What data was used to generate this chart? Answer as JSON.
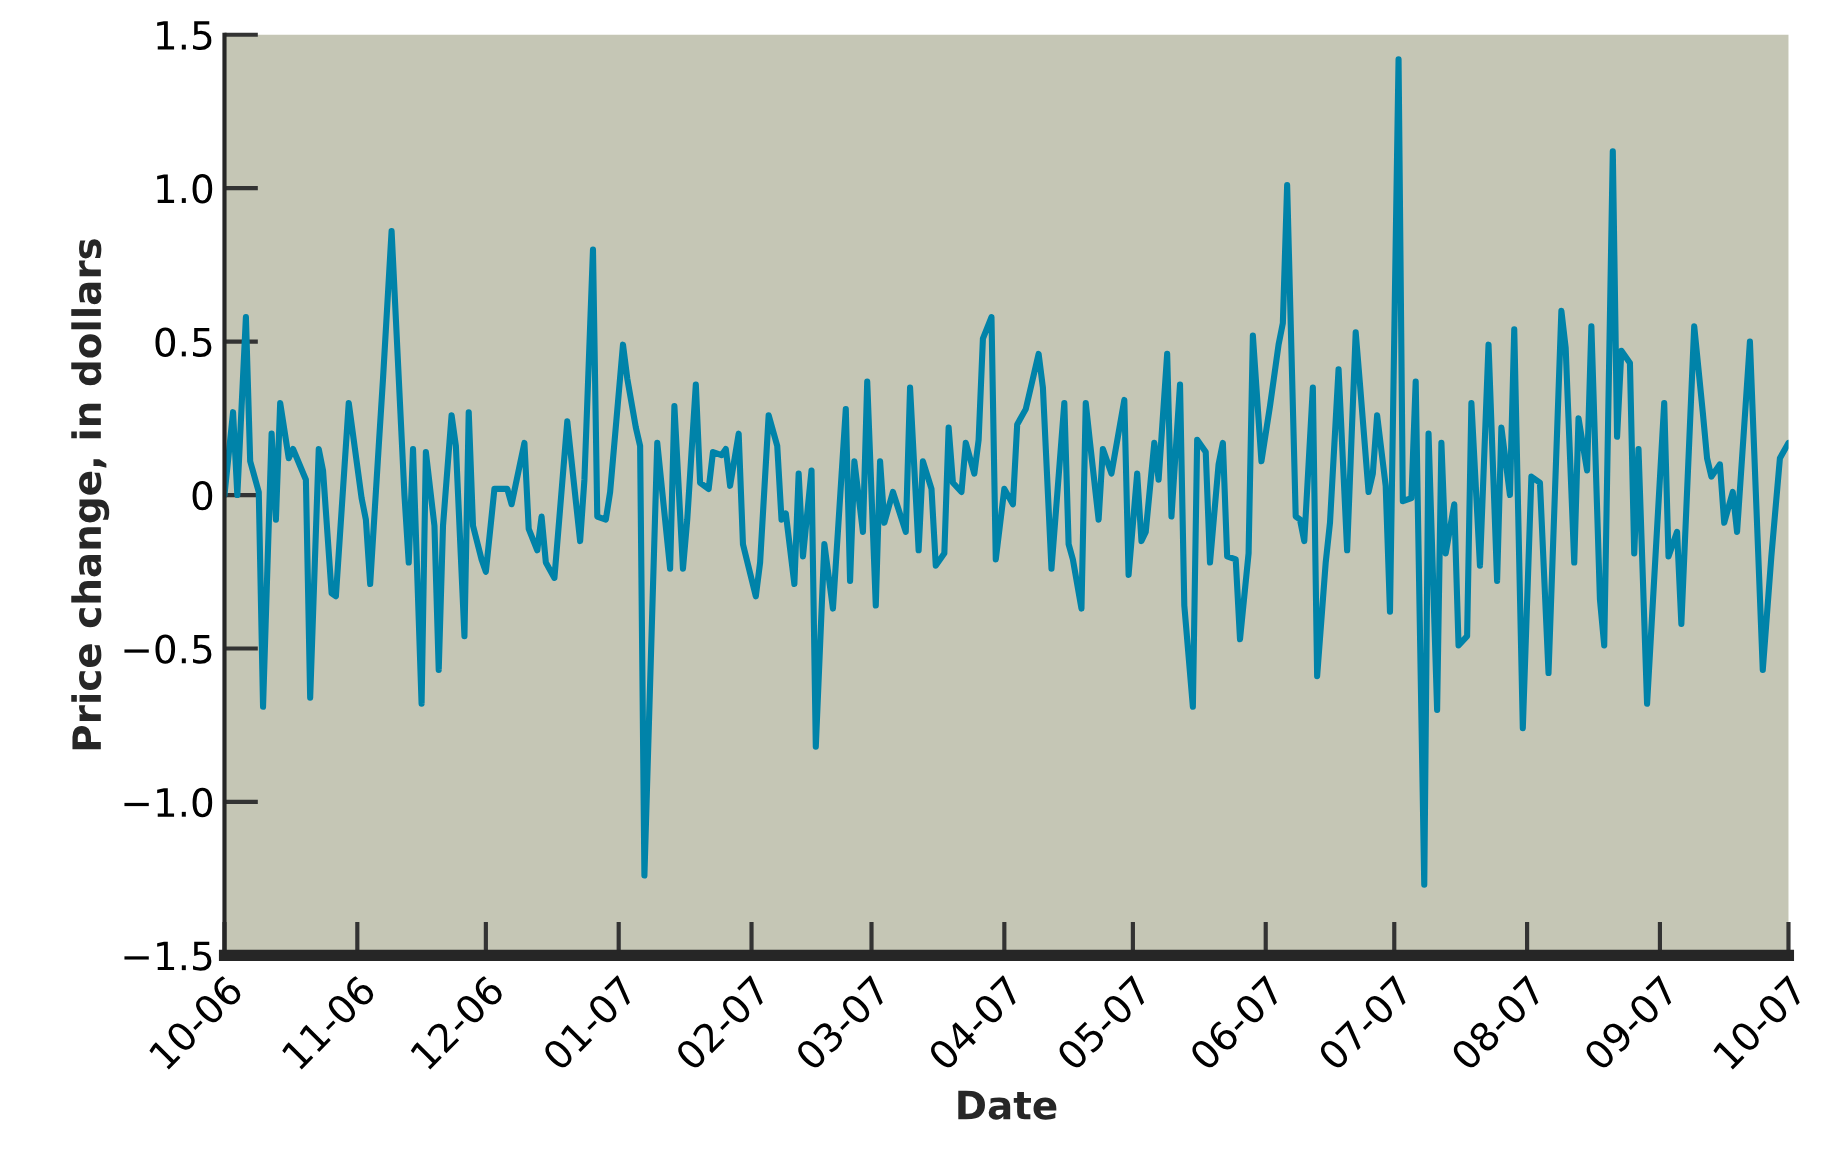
{
  "chart_data": {
    "type": "line",
    "xlabel": "Date",
    "ylabel": "Price change, in dollars",
    "xlim": [
      "2006-10",
      "2007-10"
    ],
    "ylim": [
      -1.5,
      1.5
    ],
    "xticks": [
      {
        "value": "2006-10",
        "label": "10-06"
      },
      {
        "value": "2006-11",
        "label": "11-06"
      },
      {
        "value": "2006-12",
        "label": "12-06"
      },
      {
        "value": "2007-01",
        "label": "01-07"
      },
      {
        "value": "2007-02",
        "label": "02-07"
      },
      {
        "value": "2007-03",
        "label": "03-07"
      },
      {
        "value": "2007-04",
        "label": "04-07"
      },
      {
        "value": "2007-05",
        "label": "05-07"
      },
      {
        "value": "2007-06",
        "label": "06-07"
      },
      {
        "value": "2007-07",
        "label": "07-07"
      },
      {
        "value": "2007-08",
        "label": "08-07"
      },
      {
        "value": "2007-09",
        "label": "09-07"
      },
      {
        "value": "2007-10",
        "label": "10-07"
      }
    ],
    "yticks": [
      {
        "value": -1.5,
        "label": "−1.5"
      },
      {
        "value": -1,
        "label": "−1.0"
      },
      {
        "value": -0.5,
        "label": "−0.5"
      },
      {
        "value": 0,
        "label": "0"
      },
      {
        "value": 0.5,
        "label": "0.5"
      },
      {
        "value": 1,
        "label": "1.0"
      },
      {
        "value": 1.5,
        "label": "1.5"
      }
    ],
    "grid": false,
    "legend": false,
    "marker": "none",
    "line_style": "solid",
    "series": [
      {
        "color": "#0083a9",
        "x": [
          "2006-10-01",
          "2006-10-03",
          "2006-10-04",
          "2006-10-06",
          "2006-10-07",
          "2006-10-09",
          "2006-10-10",
          "2006-10-12",
          "2006-10-13",
          "2006-10-14",
          "2006-10-16",
          "2006-10-17",
          "2006-10-20",
          "2006-10-21",
          "2006-10-23",
          "2006-10-24",
          "2006-10-26",
          "2006-10-27",
          "2006-10-30",
          "2006-11-02",
          "2006-11-03",
          "2006-11-04",
          "2006-11-06",
          "2006-11-07",
          "2006-11-09",
          "2006-11-12",
          "2006-11-13",
          "2006-11-14",
          "2006-11-16",
          "2006-11-17",
          "2006-11-19",
          "2006-11-20",
          "2006-11-21",
          "2006-11-23",
          "2006-11-24",
          "2006-11-26",
          "2006-11-27",
          "2006-11-28",
          "2006-11-30",
          "2006-12-01",
          "2006-12-03",
          "2006-12-06",
          "2006-12-07",
          "2006-12-10",
          "2006-12-11",
          "2006-12-13",
          "2006-12-14",
          "2006-12-15",
          "2006-12-17",
          "2006-12-20",
          "2006-12-23",
          "2006-12-24",
          "2006-12-26",
          "2006-12-27",
          "2006-12-29",
          "2006-12-30",
          "2007-01-02",
          "2007-01-03",
          "2007-01-05",
          "2007-01-06",
          "2007-01-07",
          "2007-01-10",
          "2007-01-13",
          "2007-01-14",
          "2007-01-16",
          "2007-01-17",
          "2007-01-19",
          "2007-01-20",
          "2007-01-22",
          "2007-01-23",
          "2007-01-25",
          "2007-01-26",
          "2007-01-27",
          "2007-01-29",
          "2007-01-30",
          "2007-02-02",
          "2007-02-03",
          "2007-02-05",
          "2007-02-07",
          "2007-02-08",
          "2007-02-09",
          "2007-02-11",
          "2007-02-12",
          "2007-02-13",
          "2007-02-15",
          "2007-02-16",
          "2007-02-18",
          "2007-02-20",
          "2007-02-23",
          "2007-02-24",
          "2007-02-25",
          "2007-02-27",
          "2007-02-28",
          "2007-03-02",
          "2007-03-03",
          "2007-03-04",
          "2007-03-06",
          "2007-03-09",
          "2007-03-10",
          "2007-03-12",
          "2007-03-13",
          "2007-03-15",
          "2007-03-16",
          "2007-03-18",
          "2007-03-19",
          "2007-03-20",
          "2007-03-22",
          "2007-03-23",
          "2007-03-25",
          "2007-03-26",
          "2007-03-27",
          "2007-03-29",
          "2007-03-30",
          "2007-04-01",
          "2007-04-03",
          "2007-04-04",
          "2007-04-06",
          "2007-04-09",
          "2007-04-10",
          "2007-04-12",
          "2007-04-15",
          "2007-04-16",
          "2007-04-17",
          "2007-04-19",
          "2007-04-20",
          "2007-04-21",
          "2007-04-23",
          "2007-04-24",
          "2007-04-26",
          "2007-04-29",
          "2007-04-30",
          "2007-05-02",
          "2007-05-03",
          "2007-05-04",
          "2007-05-06",
          "2007-05-07",
          "2007-05-09",
          "2007-05-10",
          "2007-05-12",
          "2007-05-13",
          "2007-05-15",
          "2007-05-16",
          "2007-05-18",
          "2007-05-19",
          "2007-05-21",
          "2007-05-22",
          "2007-05-23",
          "2007-05-25",
          "2007-05-26",
          "2007-05-28",
          "2007-05-29",
          "2007-05-31",
          "2007-06-02",
          "2007-06-04",
          "2007-06-05",
          "2007-06-06",
          "2007-06-08",
          "2007-06-09",
          "2007-06-10",
          "2007-06-12",
          "2007-06-13",
          "2007-06-15",
          "2007-06-16",
          "2007-06-18",
          "2007-06-20",
          "2007-06-22",
          "2007-06-23",
          "2007-06-25",
          "2007-06-26",
          "2007-06-27",
          "2007-06-29",
          "2007-06-30",
          "2007-07-02",
          "2007-07-03",
          "2007-07-05",
          "2007-07-06",
          "2007-07-08",
          "2007-07-09",
          "2007-07-11",
          "2007-07-12",
          "2007-07-13",
          "2007-07-15",
          "2007-07-16",
          "2007-07-18",
          "2007-07-19",
          "2007-07-21",
          "2007-07-23",
          "2007-07-25",
          "2007-07-26",
          "2007-07-28",
          "2007-07-29",
          "2007-07-31",
          "2007-08-02",
          "2007-08-04",
          "2007-08-06",
          "2007-08-09",
          "2007-08-10",
          "2007-08-12",
          "2007-08-13",
          "2007-08-15",
          "2007-08-16",
          "2007-08-18",
          "2007-08-19",
          "2007-08-21",
          "2007-08-22",
          "2007-08-23",
          "2007-08-25",
          "2007-08-26",
          "2007-08-27",
          "2007-08-29",
          "2007-09-02",
          "2007-09-03",
          "2007-09-05",
          "2007-09-06",
          "2007-09-09",
          "2007-09-11",
          "2007-09-12",
          "2007-09-13",
          "2007-09-15",
          "2007-09-16",
          "2007-09-18",
          "2007-09-19",
          "2007-09-22",
          "2007-09-25",
          "2007-09-27",
          "2007-09-29",
          "2007-10-01"
        ],
        "values": [
          0.0,
          0.27,
          0.0,
          0.58,
          0.11,
          0.01,
          -0.69,
          0.2,
          -0.08,
          0.3,
          0.12,
          0.15,
          0.05,
          -0.66,
          0.15,
          0.08,
          -0.32,
          -0.33,
          0.3,
          -0.01,
          -0.08,
          -0.29,
          0.16,
          0.38,
          0.86,
          0.0,
          -0.22,
          0.15,
          -0.68,
          0.14,
          -0.1,
          -0.57,
          -0.1,
          0.26,
          0.16,
          -0.46,
          0.27,
          -0.1,
          -0.21,
          -0.25,
          0.02,
          0.02,
          -0.03,
          0.17,
          -0.11,
          -0.18,
          -0.07,
          -0.22,
          -0.27,
          0.24,
          -0.15,
          0.05,
          0.8,
          -0.07,
          -0.08,
          0.01,
          0.49,
          0.38,
          0.22,
          0.16,
          -1.24,
          0.17,
          -0.24,
          0.29,
          -0.24,
          -0.08,
          0.36,
          0.04,
          0.02,
          0.14,
          0.13,
          0.15,
          0.03,
          0.2,
          -0.16,
          -0.33,
          -0.22,
          0.26,
          0.16,
          -0.08,
          -0.06,
          -0.29,
          0.07,
          -0.2,
          0.08,
          -0.82,
          -0.16,
          -0.37,
          0.28,
          -0.28,
          0.11,
          -0.12,
          0.37,
          -0.36,
          0.11,
          -0.09,
          0.01,
          -0.12,
          0.35,
          -0.18,
          0.11,
          0.02,
          -0.23,
          -0.19,
          0.22,
          0.04,
          0.01,
          0.17,
          0.07,
          0.18,
          0.51,
          0.58,
          -0.21,
          0.02,
          -0.03,
          0.23,
          0.28,
          0.46,
          0.35,
          -0.24,
          0.3,
          -0.16,
          -0.21,
          -0.37,
          0.3,
          0.17,
          -0.08,
          0.15,
          0.07,
          0.31,
          -0.26,
          0.07,
          -0.15,
          -0.12,
          0.17,
          0.05,
          0.46,
          -0.07,
          0.36,
          -0.36,
          -0.69,
          0.18,
          0.14,
          -0.22,
          0.1,
          0.17,
          -0.2,
          -0.21,
          -0.47,
          -0.19,
          0.52,
          0.11,
          0.29,
          0.49,
          0.56,
          1.01,
          -0.07,
          -0.08,
          -0.15,
          0.35,
          -0.59,
          -0.22,
          -0.09,
          0.41,
          -0.18,
          0.53,
          0.36,
          0.01,
          0.07,
          0.26,
          0.03,
          -0.38,
          1.42,
          -0.02,
          -0.01,
          0.37,
          -1.27,
          0.2,
          -0.7,
          0.17,
          -0.19,
          -0.03,
          -0.49,
          -0.46,
          0.3,
          -0.23,
          0.49,
          -0.28,
          0.22,
          0.0,
          0.54,
          -0.76,
          0.06,
          0.04,
          -0.58,
          0.6,
          0.48,
          -0.22,
          0.25,
          0.08,
          0.55,
          -0.34,
          -0.49,
          1.12,
          0.19,
          0.47,
          0.43,
          -0.19,
          0.15,
          -0.68,
          0.3,
          -0.2,
          -0.12,
          -0.42,
          0.55,
          0.27,
          0.12,
          0.06,
          0.1,
          -0.09,
          0.01,
          -0.12,
          0.5,
          -0.57,
          -0.2,
          0.12,
          0.17
        ]
      }
    ]
  }
}
